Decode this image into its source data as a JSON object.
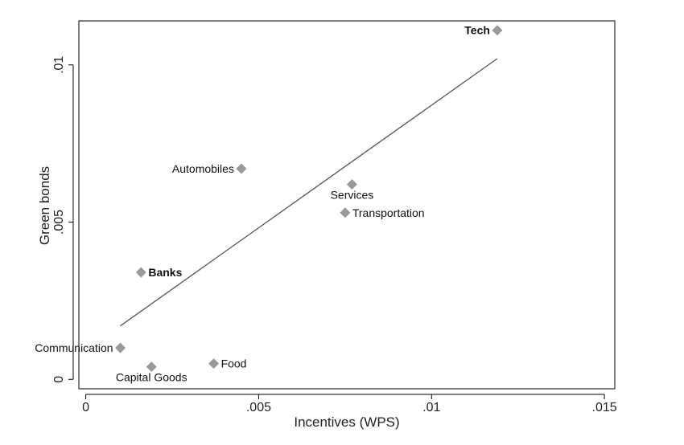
{
  "chart_data": {
    "type": "scatter",
    "title": "",
    "xlabel": "Incentives (WPS)",
    "ylabel": "Green bonds",
    "xlim": [
      -0.0002,
      0.0153
    ],
    "ylim": [
      -0.0003,
      0.0114
    ],
    "x_ticks": [
      {
        "value": 0,
        "label": "0"
      },
      {
        "value": 0.005,
        "label": ".005"
      },
      {
        "value": 0.01,
        "label": ".01"
      },
      {
        "value": 0.015,
        "label": ".015"
      }
    ],
    "y_ticks": [
      {
        "value": 0,
        "label": "0"
      },
      {
        "value": 0.005,
        "label": ".005"
      },
      {
        "value": 0.01,
        "label": ".01"
      }
    ],
    "grid": false,
    "marker_color": "#999999",
    "line_color": "#555555",
    "series": [
      {
        "points": [
          {
            "label": "Tech",
            "x": 0.0119,
            "y": 0.0111,
            "label_pos": "left",
            "bold": true
          },
          {
            "label": "Automobiles",
            "x": 0.0045,
            "y": 0.0067,
            "label_pos": "left",
            "bold": false
          },
          {
            "label": "Services",
            "x": 0.0077,
            "y": 0.0062,
            "label_pos": "below",
            "bold": false
          },
          {
            "label": "Transportation",
            "x": 0.0075,
            "y": 0.0053,
            "label_pos": "right",
            "bold": false
          },
          {
            "label": "Banks",
            "x": 0.0016,
            "y": 0.0034,
            "label_pos": "right",
            "bold": true
          },
          {
            "label": "Communication",
            "x": 0.001,
            "y": 0.001,
            "label_pos": "left",
            "bold": false
          },
          {
            "label": "Food",
            "x": 0.0037,
            "y": 0.0005,
            "label_pos": "right",
            "bold": false
          },
          {
            "label": "Capital Goods",
            "x": 0.0019,
            "y": 0.0004,
            "label_pos": "below",
            "bold": false
          }
        ]
      }
    ],
    "fit_line": {
      "x": [
        0.001,
        0.0119
      ],
      "y": [
        0.0017,
        0.0102
      ]
    }
  }
}
